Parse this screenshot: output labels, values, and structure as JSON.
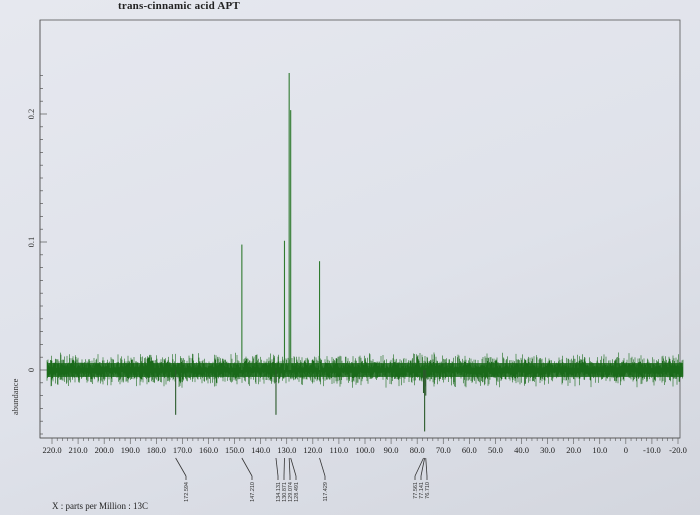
{
  "window": {
    "title": "trans-cinnamic acid APT",
    "x_unit_label": "X : parts per Million : 13C"
  },
  "chart_data": {
    "type": "line",
    "title": "trans-cinnamic acid APT",
    "xlabel": "X : parts per Million : 13C",
    "ylabel": "abundance",
    "xlim": [
      220.0,
      -20.0
    ],
    "ylim": [
      -0.065,
      0.235
    ],
    "x_ticks": [
      "220.0",
      "210.0",
      "200.0",
      "190.0",
      "180.0",
      "170.0",
      "160.0",
      "150.0",
      "140.0",
      "130.0",
      "120.0",
      "110.0",
      "100.0",
      "90.0",
      "80.0",
      "70.0",
      "60.0",
      "50.0",
      "40.0",
      "30.0",
      "20.0",
      "10.0",
      "0",
      "-10.0",
      "-20.0"
    ],
    "y_ticks": [
      "0",
      "0.1",
      "0.2"
    ],
    "line_color": "#1a6a1a",
    "peaks": [
      {
        "ppm": 172.594,
        "abundance": -0.035
      },
      {
        "ppm": 147.21,
        "abundance": 0.098
      },
      {
        "ppm": 134.131,
        "abundance": -0.035
      },
      {
        "ppm": 130.871,
        "abundance": 0.101
      },
      {
        "ppm": 129.074,
        "abundance": 0.232
      },
      {
        "ppm": 128.491,
        "abundance": 0.203
      },
      {
        "ppm": 117.429,
        "abundance": 0.085
      },
      {
        "ppm": 77.561,
        "abundance": -0.018
      },
      {
        "ppm": 77.141,
        "abundance": -0.048
      },
      {
        "ppm": 76.71,
        "abundance": -0.02
      }
    ],
    "peak_labels": [
      "172.594",
      "147.210",
      "134.131",
      "130.871",
      "129.074",
      "128.491",
      "117.429",
      "77.561",
      "77.141",
      "76.710"
    ]
  }
}
